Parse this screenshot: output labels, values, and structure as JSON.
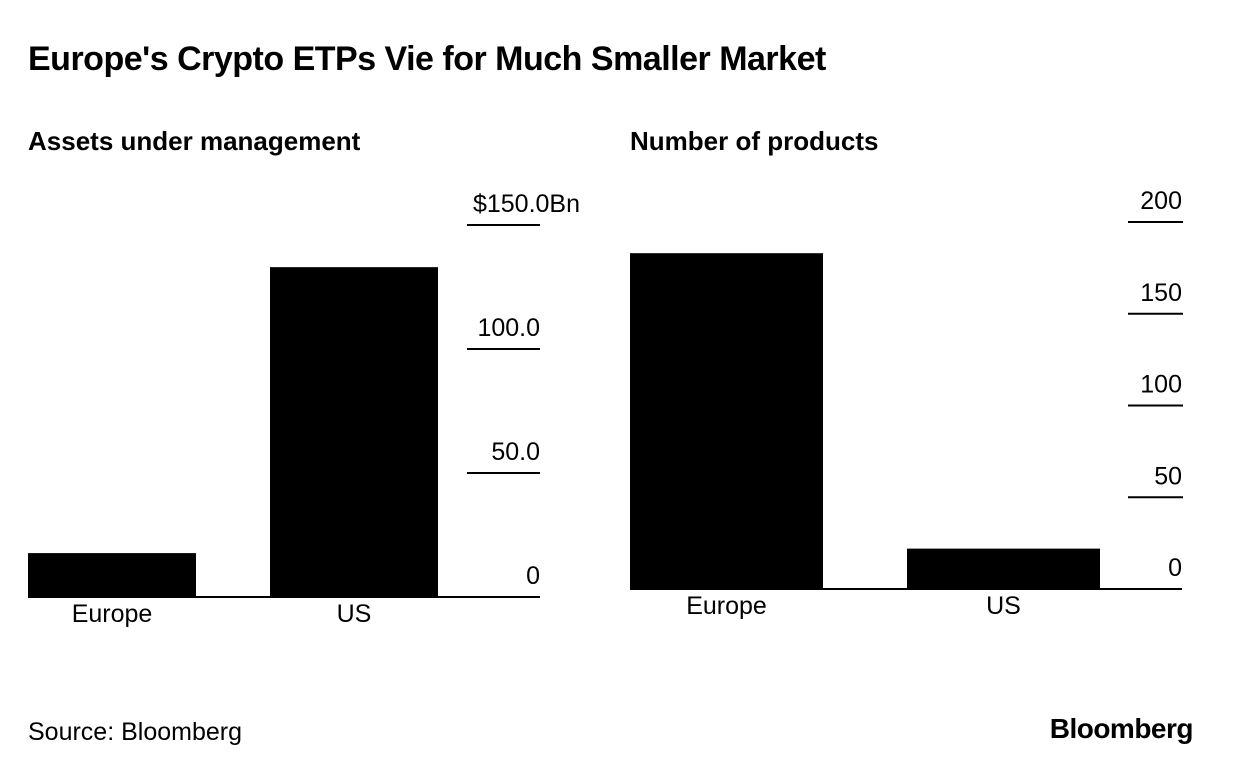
{
  "title": "Europe's Crypto ETPs Vie for Much Smaller Market",
  "source": "Source: Bloomberg",
  "logo": "Bloomberg",
  "chart_data": [
    {
      "type": "bar",
      "title": "Assets under management",
      "categories": [
        "Europe",
        "US"
      ],
      "values": [
        17.7,
        133
      ],
      "ylim": [
        0,
        150
      ],
      "yticks": [
        0,
        50,
        100,
        150
      ],
      "ytick_labels": [
        "0",
        "50.0",
        "100.0",
        "$150.0Bn"
      ],
      "grid": false,
      "color": "#000000"
    },
    {
      "type": "bar",
      "title": "Number of products",
      "categories": [
        "Europe",
        "US"
      ],
      "values": [
        183,
        22
      ],
      "ylim": [
        0,
        200
      ],
      "yticks": [
        0,
        50,
        100,
        150,
        200
      ],
      "ytick_labels": [
        "0",
        "50",
        "100",
        "150",
        "200"
      ],
      "grid": false,
      "color": "#000000"
    }
  ]
}
